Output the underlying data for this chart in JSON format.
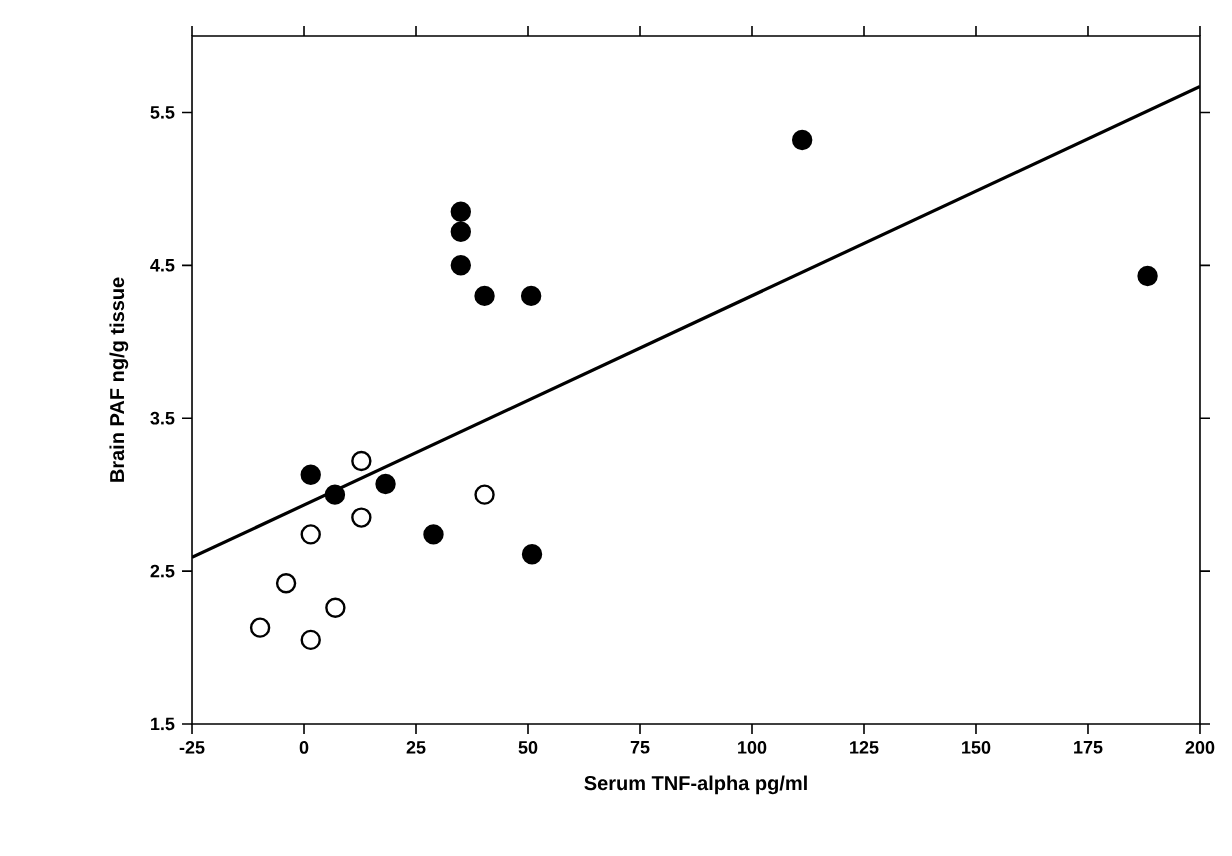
{
  "chart_data": {
    "type": "scatter",
    "xlabel": "Serum TNF-alpha pg/ml",
    "ylabel": "Brain PAF ng/g tissue",
    "xlim": [
      -25,
      200
    ],
    "ylim": [
      1.5,
      6.0
    ],
    "xticks": [
      -25,
      0,
      25,
      50,
      75,
      100,
      125,
      150,
      175,
      200
    ],
    "yticks": [
      1.5,
      2.5,
      3.5,
      4.5,
      5.5
    ],
    "grid": false,
    "marker": "circle",
    "series": [
      {
        "color": "#000000",
        "x": [
          35,
          35,
          35,
          40.3,
          50.7,
          111.2,
          188.3,
          1.5,
          6.9,
          18.2,
          28.9,
          50.9
        ],
        "values": [
          4.85,
          4.72,
          4.5,
          4.3,
          4.3,
          5.32,
          4.43,
          3.13,
          3.0,
          3.07,
          2.74,
          2.61
        ]
      },
      {
        "color": "#ffffff",
        "x": [
          12.8,
          40.3,
          12.8,
          1.5,
          -4.0,
          7.0,
          -9.8,
          1.5
        ],
        "values": [
          3.22,
          3.0,
          2.85,
          2.74,
          2.42,
          2.26,
          2.13,
          2.05
        ]
      },
      {
        "type": "line",
        "color": "#000000",
        "line_style": "solid",
        "marker": "none",
        "x": [
          -25,
          200
        ],
        "values": [
          2.59,
          5.67
        ]
      }
    ]
  }
}
